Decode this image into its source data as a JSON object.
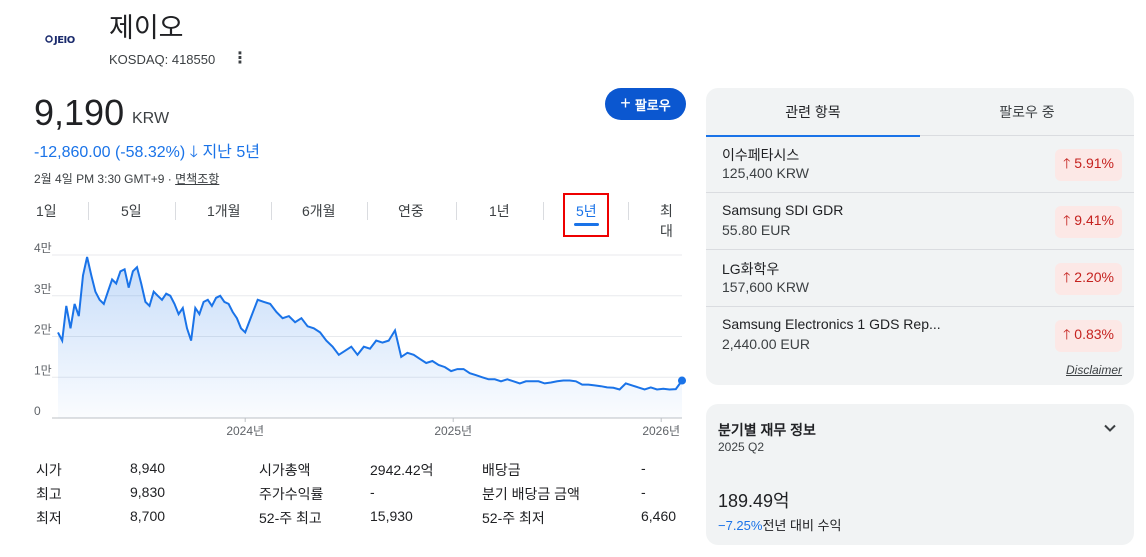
{
  "header": {
    "logo_text": "JEIO",
    "company_name": "제이오",
    "ticker": "KOSDAQ: 418550"
  },
  "quote": {
    "price": "9,190",
    "currency": "KRW",
    "change": "-12,860.00 (-58.32%)",
    "change_period": "지난 5년",
    "timestamp": "2월 4일 PM 3:30 GMT+9 · ",
    "disclaimer_link": "면책조항"
  },
  "follow_button": {
    "label": "팔로우"
  },
  "ranges": [
    "1일",
    "5일",
    "1개월",
    "6개월",
    "연중",
    "1년",
    "5년",
    "최대"
  ],
  "active_range": "5년",
  "chart_data": {
    "type": "area",
    "title": "",
    "xlabel": "",
    "ylabel": "",
    "ylim": [
      0,
      40000
    ],
    "y_ticks": [
      "0",
      "1만",
      "2만",
      "3만",
      "4만"
    ],
    "x_ticks": [
      "2024년",
      "2025년",
      "2026년"
    ],
    "x_tick_positions": [
      2024.0,
      2025.0,
      2026.0
    ],
    "x_range": [
      2023.1,
      2026.1
    ],
    "line_color": "#1a73e8",
    "series": [
      {
        "x": [
          2023.1,
          2023.12,
          2023.14,
          2023.16,
          2023.18,
          2023.2,
          2023.22,
          2023.24,
          2023.26,
          2023.28,
          2023.3,
          2023.32,
          2023.34,
          2023.36,
          2023.38,
          2023.4,
          2023.42,
          2023.44,
          2023.46,
          2023.48,
          2023.5,
          2023.52,
          2023.54,
          2023.56,
          2023.58,
          2023.6,
          2023.62,
          2023.64,
          2023.66,
          2023.68,
          2023.7,
          2023.72,
          2023.74,
          2023.76,
          2023.78,
          2023.8,
          2023.82,
          2023.84,
          2023.86,
          2023.88,
          2023.9,
          2023.92,
          2023.94,
          2023.96,
          2023.98,
          2024.0,
          2024.03,
          2024.06,
          2024.09,
          2024.12,
          2024.15,
          2024.18,
          2024.21,
          2024.24,
          2024.27,
          2024.3,
          2024.33,
          2024.36,
          2024.39,
          2024.42,
          2024.45,
          2024.48,
          2024.51,
          2024.54,
          2024.57,
          2024.6,
          2024.63,
          2024.66,
          2024.69,
          2024.72,
          2024.75,
          2024.78,
          2024.81,
          2024.84,
          2024.87,
          2024.9,
          2024.93,
          2024.96,
          2024.99,
          2025.02,
          2025.05,
          2025.08,
          2025.11,
          2025.14,
          2025.17,
          2025.2,
          2025.23,
          2025.26,
          2025.29,
          2025.32,
          2025.35,
          2025.38,
          2025.41,
          2025.44,
          2025.47,
          2025.5,
          2025.53,
          2025.56,
          2025.59,
          2025.62,
          2025.65,
          2025.68,
          2025.71,
          2025.74,
          2025.77,
          2025.8,
          2025.83,
          2025.86,
          2025.89,
          2025.92,
          2025.95,
          2025.98,
          2026.01,
          2026.04,
          2026.07,
          2026.1
        ],
        "values": [
          21000,
          19000,
          27500,
          22000,
          28000,
          25000,
          35000,
          39500,
          35000,
          31000,
          29000,
          28000,
          31000,
          34000,
          33000,
          36000,
          36500,
          32000,
          36000,
          37000,
          33000,
          28500,
          27500,
          31000,
          30000,
          29000,
          30500,
          30000,
          28000,
          25500,
          27000,
          22000,
          19000,
          27000,
          25500,
          28500,
          29000,
          27500,
          29500,
          30000,
          28500,
          28000,
          26000,
          24500,
          22000,
          21000,
          25000,
          29000,
          28500,
          28000,
          26000,
          24500,
          25000,
          23500,
          24500,
          22500,
          22000,
          21000,
          19000,
          17500,
          15500,
          16500,
          17500,
          15500,
          17500,
          17000,
          19000,
          18500,
          19000,
          21500,
          15000,
          16000,
          15500,
          14500,
          13500,
          14000,
          13000,
          12500,
          11500,
          12000,
          12000,
          11000,
          10500,
          10000,
          9500,
          9500,
          9000,
          9500,
          9000,
          8500,
          9000,
          9000,
          9000,
          8500,
          8700,
          9000,
          9200,
          9200,
          9000,
          8200,
          8200,
          8000,
          7800,
          7500,
          7400,
          7000,
          8500,
          8000,
          7500,
          7000,
          7500,
          7000,
          7200,
          7000,
          7100,
          9190
        ]
      }
    ]
  },
  "stats": {
    "col1": [
      {
        "label": "시가",
        "value": "8,940"
      },
      {
        "label": "최고",
        "value": "9,830"
      },
      {
        "label": "최저",
        "value": "8,700"
      }
    ],
    "col2": [
      {
        "label": "시가총액",
        "value": "2942.42억"
      },
      {
        "label": "주가수익률",
        "value": "-"
      },
      {
        "label": "52-주 최고",
        "value": "15,930"
      }
    ],
    "col3": [
      {
        "label": "배당금",
        "value": "-"
      },
      {
        "label": "분기 배당금 금액",
        "value": "-"
      },
      {
        "label": "52-주 최저",
        "value": "6,460"
      }
    ]
  },
  "related": {
    "tabs": [
      "관련 항목",
      "팔로우 중"
    ],
    "items": [
      {
        "name": "이수페타시스",
        "value": "125,400 KRW",
        "change": "5.91%"
      },
      {
        "name": "Samsung SDI GDR",
        "value": "55.80 EUR",
        "change": "9.41%"
      },
      {
        "name": "LG화학우",
        "value": "157,600 KRW",
        "change": "2.20%"
      },
      {
        "name": "Samsung Electronics 1 GDS Rep...",
        "value": "2,440.00 EUR",
        "change": "0.83%"
      }
    ],
    "disclaimer": "Disclaimer"
  },
  "financials": {
    "title": "분기별 재무 정보",
    "quarter": "2025 Q2",
    "value": "189.49억",
    "pct": "−7.25%",
    "pct_label": "전년 대비 수익"
  }
}
